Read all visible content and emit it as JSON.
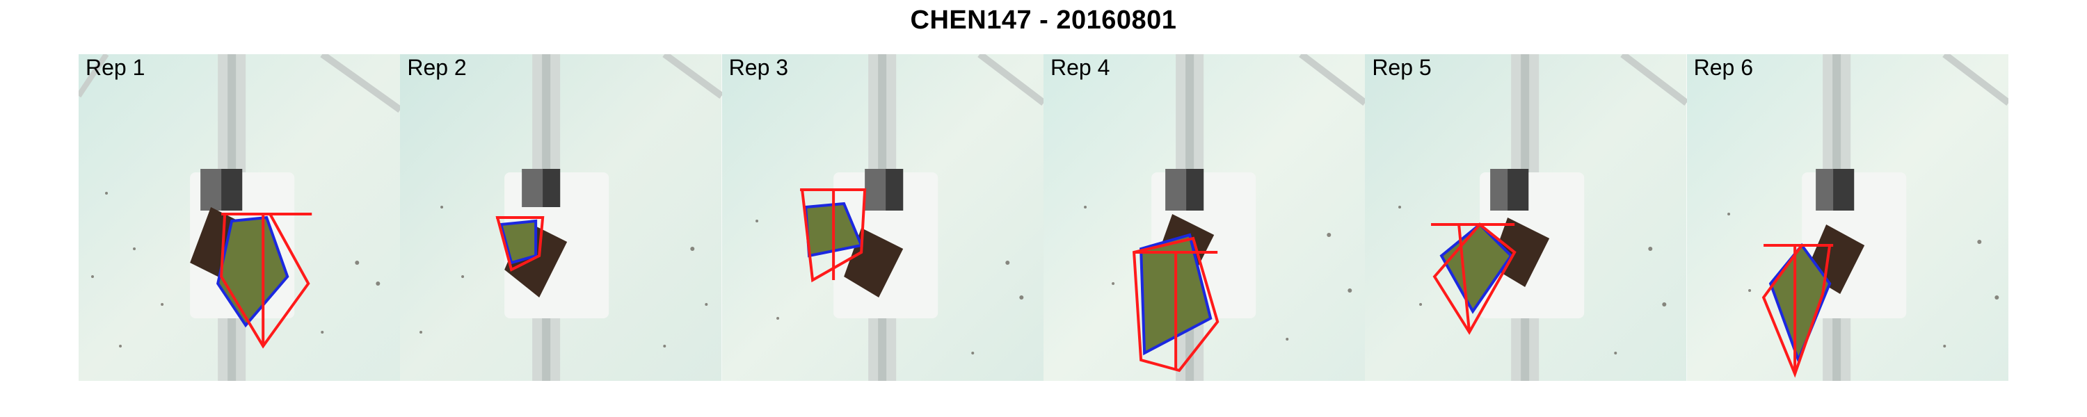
{
  "title": "CHEN147 - 20160801",
  "colors": {
    "background_start": "#dcefe9",
    "background_end": "#eef6ef",
    "tray": "#f4f6f4",
    "rail": "#c9cfcc",
    "soil": "#3d2a1f",
    "leaf_fill": "#6a7a3a",
    "leaf_outline": "#1b28e0",
    "hull": "#ff1a1a"
  },
  "panels": [
    {
      "label": "Rep 1"
    },
    {
      "label": "Rep 2"
    },
    {
      "label": "Rep 3"
    },
    {
      "label": "Rep 4"
    },
    {
      "label": "Rep 5"
    },
    {
      "label": "Rep 6"
    }
  ]
}
